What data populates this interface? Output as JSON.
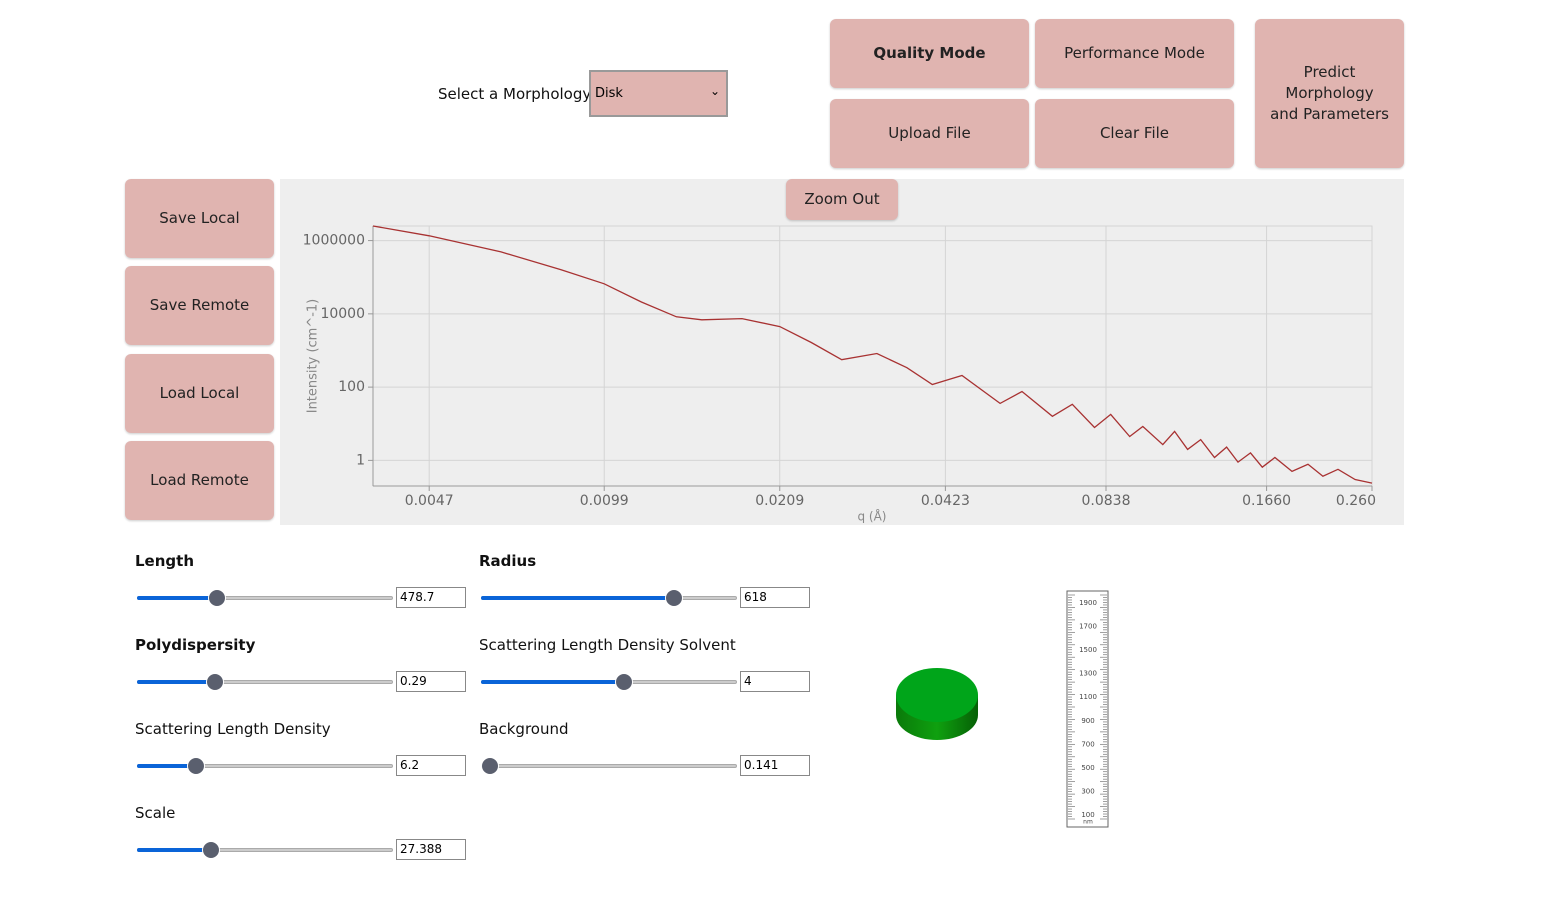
{
  "controls": {
    "morphology_label": "Select a Morphology:",
    "morphology": "Disk",
    "top_buttons": [
      "Quality Mode",
      "Performance Mode",
      "Upload File",
      "Clear File"
    ],
    "predict_button": "Predict Morphology and Parameters",
    "side_buttons": [
      "Save Local",
      "Save Remote",
      "Load Local",
      "Load Remote"
    ],
    "zoom_button": "Zoom Out"
  },
  "parameters": [
    {
      "label": "Length",
      "value": "478.7"
    },
    {
      "label": "Polydispersity",
      "value": "0.29"
    },
    {
      "label": "Scattering Length Density",
      "value": "6.2"
    },
    {
      "label": "Scale",
      "value": "27.388"
    },
    {
      "label": "Radius",
      "value": "618"
    },
    {
      "label": "Scattering Length Density Solvent",
      "value": "4"
    },
    {
      "label": "Background",
      "value": "0.141"
    }
  ],
  "ruler": {
    "ticks": [
      1900,
      1700,
      1500,
      1300,
      1100,
      900,
      700,
      500,
      300,
      100
    ],
    "unit": "nm"
  },
  "chart_data": {
    "type": "line",
    "xlabel": "q (Å)",
    "ylabel": "Intensity (cm^-1)",
    "xscale": "log",
    "yscale": "log",
    "grid": true,
    "color": "#a83232",
    "xlim": [
      0.0037,
      0.26
    ],
    "ylim": [
      0.2,
      2500000
    ],
    "xticks": [
      0.0047,
      0.0099,
      0.0209,
      0.0423,
      0.0838,
      {
        "value": 0.166,
        "label": "0.1660"
      },
      {
        "value": 0.26,
        "label": "0.260"
      }
    ],
    "yticks": [
      1000000,
      10000,
      100,
      1
    ],
    "x": [
      0.0037,
      0.0047,
      0.00638,
      0.00824,
      0.0099,
      0.0116,
      0.01346,
      0.015,
      0.0178,
      0.0209,
      0.0239,
      0.0272,
      0.0316,
      0.0359,
      0.04,
      0.0454,
      0.0534,
      0.0586,
      0.0667,
      0.0726,
      0.0798,
      0.0855,
      0.0927,
      0.098,
      0.1067,
      0.1122,
      0.1186,
      0.1254,
      0.133,
      0.14,
      0.147,
      0.155,
      0.163,
      0.172,
      0.185,
      0.198,
      0.211,
      0.225,
      0.242,
      0.26
    ],
    "values": [
      2500000,
      1350000,
      490000,
      160000,
      66000,
      21000,
      8300,
      6900,
      7400,
      4500,
      1650,
      560,
      830,
      340,
      118,
      208,
      36,
      76,
      16,
      34,
      7.9,
      18,
      4.5,
      8.4,
      2.7,
      6.2,
      2.0,
      3.7,
      1.2,
      2.3,
      0.9,
      1.6,
      0.65,
      1.2,
      0.5,
      0.78,
      0.37,
      0.57,
      0.3,
      0.24
    ]
  }
}
